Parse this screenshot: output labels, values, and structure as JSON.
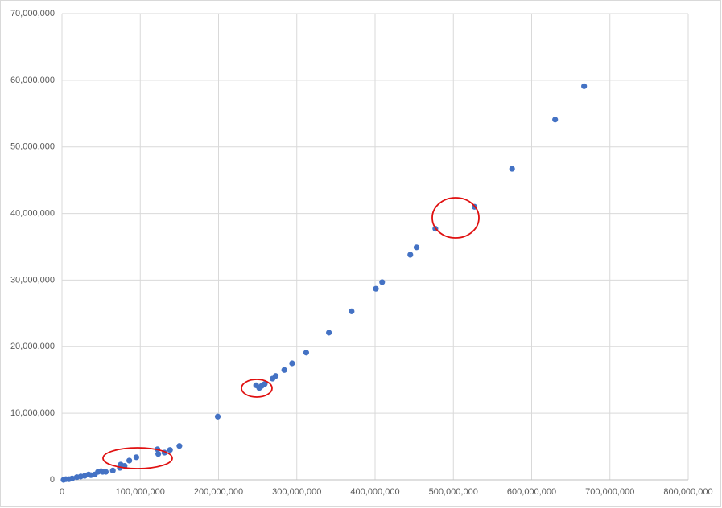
{
  "chart_data": {
    "type": "scatter",
    "color": "#4472c4",
    "grid": true,
    "xlim": [
      0,
      800000000
    ],
    "xticks": [
      0,
      {
        "value": 100000000,
        "label": "100,000,000"
      },
      {
        "value": 200000000,
        "label": "200,000,000"
      },
      {
        "value": 300000000,
        "label": "300,000,000"
      },
      {
        "value": 400000000,
        "label": "400,000,000"
      },
      {
        "value": 500000000,
        "label": "500,000,000"
      },
      {
        "value": 600000000,
        "label": "600,000,000"
      },
      {
        "value": 700000000,
        "label": "700,000,000"
      },
      {
        "value": 800000000,
        "label": "800,000,000"
      }
    ],
    "ylim": [
      0,
      70000000
    ],
    "yticks": [
      0,
      {
        "value": 10000000,
        "label": "10,000,000"
      },
      {
        "value": 20000000,
        "label": "20,000,000"
      },
      {
        "value": 30000000,
        "label": "30,000,000"
      },
      {
        "value": 40000000,
        "label": "40,000,000"
      },
      {
        "value": 50000000,
        "label": "50,000,000"
      },
      {
        "value": 60000000,
        "label": "60,000,000"
      },
      {
        "value": 70000000,
        "label": "70,000,000"
      }
    ],
    "x": [
      667000000,
      630000000,
      575000000,
      527000000,
      477000000,
      453000000,
      445000000,
      409000000,
      401000000,
      370000000,
      341000000,
      312000000,
      294000000,
      284000000,
      273000000,
      269000000,
      259000000,
      255000000,
      252000000,
      248000000,
      199000000,
      150000000,
      138000000,
      131000000,
      123000000,
      122000000,
      95000000,
      86000000,
      80000000,
      75000000,
      74000000,
      65000000,
      56000000,
      52000000,
      50000000,
      46000000,
      42000000,
      37000000,
      34000000,
      29000000,
      24000000,
      19000000,
      13000000,
      9000000,
      5000000,
      2000000
    ],
    "values": [
      59100000,
      54100000,
      46700000,
      41000000,
      37700000,
      34900000,
      33800000,
      29700000,
      28700000,
      25300000,
      22100000,
      19100000,
      17500000,
      16500000,
      15600000,
      15200000,
      14400000,
      14100000,
      13800000,
      14200000,
      9500000,
      5100000,
      4500000,
      4100000,
      3900000,
      4600000,
      3400000,
      2900000,
      2100000,
      2300000,
      1800000,
      1400000,
      1200000,
      1200000,
      1300000,
      1200000,
      800000,
      700000,
      800000,
      600000,
      500000,
      400000,
      200000,
      100000,
      100000,
      0
    ]
  }
}
